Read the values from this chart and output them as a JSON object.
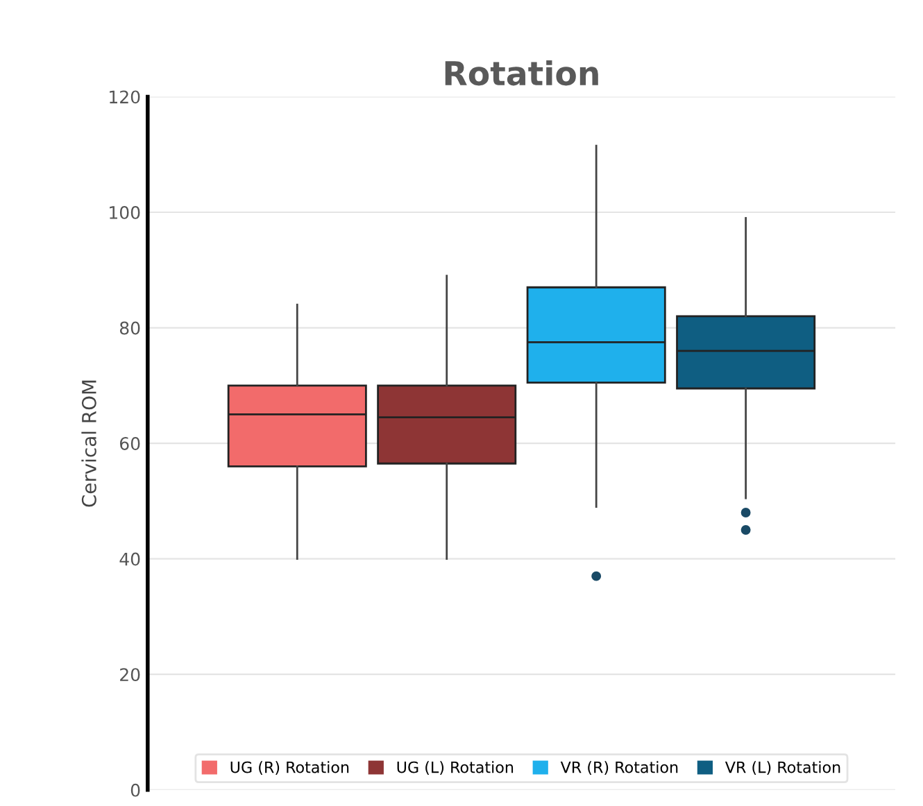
{
  "chart_data": {
    "type": "box",
    "title": "Rotation",
    "ylabel": "Cervical ROM",
    "categories": [
      null
    ],
    "ylim": [
      0,
      120
    ],
    "yticks": [
      0,
      20,
      40,
      60,
      80,
      100,
      120
    ],
    "grid": "y",
    "legend": "bottom",
    "series": [
      {
        "name": "UG (R) Rotation",
        "color": "#f26b6b",
        "boxes": [
          {
            "low": 40,
            "q1": 56,
            "median": 65,
            "q3": 70,
            "high": 84
          }
        ]
      },
      {
        "name": "UG (L) Rotation",
        "color": "#8e3535",
        "boxes": [
          {
            "low": 40,
            "q1": 56.5,
            "median": 64.5,
            "q3": 70,
            "high": 89
          }
        ]
      },
      {
        "name": "VR (R) Rotation",
        "color": "#1fb0ec",
        "boxes": [
          {
            "low": 49,
            "q1": 70.5,
            "median": 77.5,
            "q3": 87,
            "high": 111.5,
            "outliers": [
              37
            ]
          }
        ]
      },
      {
        "name": "VR (L) Rotation",
        "color": "#0f5e82",
        "boxes": [
          {
            "low": 50.5,
            "q1": 69.5,
            "median": 76,
            "q3": 82,
            "high": 99,
            "outliers": [
              48,
              45
            ]
          }
        ]
      }
    ]
  }
}
